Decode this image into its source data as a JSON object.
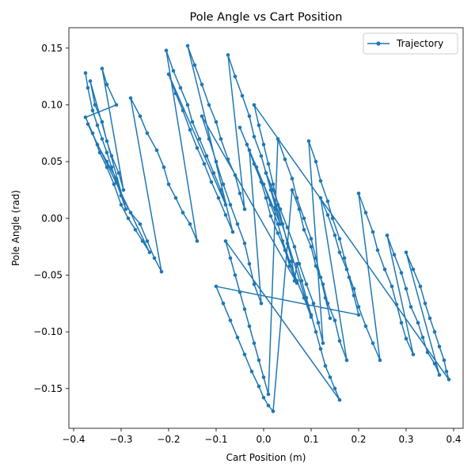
{
  "chart_data": {
    "type": "line",
    "title": "Pole Angle vs Cart Position",
    "xlabel": "Cart Position (m)",
    "ylabel": "Pole Angle (rad)",
    "xlim": [
      -0.41,
      0.42
    ],
    "ylim": [
      -0.185,
      0.168
    ],
    "xticks": [
      -0.4,
      -0.3,
      -0.2,
      -0.1,
      0.0,
      0.1,
      0.2,
      0.3,
      0.4
    ],
    "xtick_labels": [
      "−0.4",
      "−0.3",
      "−0.2",
      "−0.1",
      "0.0",
      "0.1",
      "0.2",
      "0.3",
      "0.4"
    ],
    "yticks": [
      -0.15,
      -0.1,
      -0.05,
      0.0,
      0.05,
      0.1,
      0.15
    ],
    "ytick_labels": [
      "−0.15",
      "−0.10",
      "−0.05",
      "0.00",
      "0.05",
      "0.10",
      "0.15"
    ],
    "grid": false,
    "legend_position": "top-right",
    "series": [
      {
        "name": "Trajectory",
        "color": "#1f77b4",
        "marker": "circle",
        "x": [
          -0.375,
          -0.37,
          -0.36,
          -0.35,
          -0.34,
          -0.33,
          -0.32,
          -0.31,
          -0.3,
          -0.29,
          -0.365,
          -0.355,
          -0.34,
          -0.33,
          -0.32,
          -0.305,
          -0.295,
          -0.34,
          -0.33,
          -0.31,
          -0.375,
          -0.36,
          -0.345,
          -0.33,
          -0.315,
          -0.3,
          -0.285,
          -0.27,
          -0.255,
          -0.24,
          -0.37,
          -0.35,
          -0.33,
          -0.31,
          -0.3,
          -0.28,
          -0.26,
          -0.245,
          -0.23,
          -0.215,
          -0.28,
          -0.26,
          -0.245,
          -0.225,
          -0.21,
          -0.2,
          -0.185,
          -0.17,
          -0.155,
          -0.14,
          -0.205,
          -0.19,
          -0.175,
          -0.16,
          -0.15,
          -0.135,
          -0.12,
          -0.105,
          -0.09,
          -0.08,
          -0.2,
          -0.185,
          -0.17,
          -0.155,
          -0.14,
          -0.125,
          -0.11,
          -0.095,
          -0.08,
          -0.065,
          -0.16,
          -0.145,
          -0.13,
          -0.115,
          -0.1,
          -0.09,
          -0.075,
          -0.06,
          -0.05,
          -0.04,
          -0.075,
          -0.06,
          -0.045,
          -0.03,
          -0.02,
          -0.005,
          0.005,
          0.015,
          0.025,
          0.035,
          -0.05,
          -0.035,
          -0.02,
          -0.005,
          0.005,
          0.015,
          0.03,
          0.045,
          0.055,
          0.07,
          -0.13,
          -0.115,
          -0.1,
          -0.085,
          -0.07,
          -0.055,
          -0.04,
          -0.03,
          -0.02,
          -0.005,
          -0.03,
          -0.015,
          0.0,
          0.015,
          0.03,
          0.04,
          0.055,
          0.07,
          0.085,
          0.1,
          0.005,
          0.02,
          0.035,
          0.05,
          0.065,
          0.075,
          0.09,
          0.105,
          0.115,
          0.125,
          0.095,
          0.11,
          0.12,
          0.135,
          0.145,
          0.16,
          0.17,
          0.18,
          0.19,
          0.2,
          -0.1,
          -0.085,
          -0.07,
          -0.055,
          -0.04,
          -0.025,
          -0.01,
          0.0,
          0.01,
          0.02,
          0.06,
          0.075,
          0.085,
          0.1,
          0.11,
          0.125,
          0.135,
          0.15,
          0.16,
          0.175,
          0.12,
          0.135,
          0.15,
          0.16,
          0.175,
          0.19,
          0.2,
          0.215,
          0.23,
          0.245,
          0.2,
          0.215,
          0.23,
          0.24,
          0.255,
          0.27,
          0.28,
          0.29,
          0.3,
          0.315,
          0.26,
          0.275,
          0.29,
          0.3,
          0.31,
          0.325,
          0.335,
          0.345,
          0.36,
          0.37,
          0.3,
          0.315,
          0.33,
          0.34,
          0.35,
          0.36,
          0.37,
          0.38,
          0.385,
          0.39,
          -0.02,
          -0.01,
          0.0,
          0.01,
          0.02,
          0.03,
          0.04,
          0.05,
          0.06,
          0.065,
          0.07,
          0.08,
          0.09,
          0.1,
          0.11,
          0.12,
          0.13,
          0.14,
          0.15,
          0.16,
          -0.08,
          -0.07,
          -0.06,
          -0.05,
          -0.04,
          -0.03,
          -0.02,
          -0.01,
          0.0,
          0.01,
          0.03,
          0.045,
          0.06,
          0.07,
          0.085,
          0.1,
          0.11,
          0.12,
          0.13,
          0.14
        ],
        "y": [
          0.128,
          0.115,
          0.095,
          0.082,
          0.07,
          0.058,
          0.045,
          0.032,
          0.02,
          0.008,
          0.121,
          0.1,
          0.085,
          0.068,
          0.055,
          0.04,
          0.025,
          0.132,
          0.118,
          0.1,
          0.089,
          0.075,
          0.058,
          0.045,
          0.03,
          0.012,
          0.0,
          -0.01,
          -0.02,
          -0.03,
          0.083,
          0.065,
          0.05,
          0.035,
          0.02,
          0.005,
          -0.005,
          -0.02,
          -0.035,
          -0.047,
          0.106,
          0.09,
          0.075,
          0.06,
          0.045,
          0.03,
          0.018,
          0.005,
          -0.005,
          -0.02,
          0.148,
          0.13,
          0.115,
          0.1,
          0.085,
          0.07,
          0.055,
          0.04,
          0.025,
          0.012,
          0.127,
          0.11,
          0.095,
          0.078,
          0.062,
          0.048,
          0.032,
          0.018,
          0.003,
          -0.012,
          0.152,
          0.135,
          0.118,
          0.1,
          0.085,
          0.07,
          0.052,
          0.038,
          0.022,
          0.008,
          0.144,
          0.125,
          0.108,
          0.09,
          0.072,
          0.055,
          0.04,
          0.025,
          0.01,
          -0.005,
          0.08,
          0.065,
          0.048,
          0.032,
          0.018,
          0.002,
          -0.013,
          -0.028,
          -0.042,
          -0.057,
          0.09,
          0.07,
          0.05,
          0.03,
          0.012,
          -0.005,
          -0.022,
          -0.04,
          -0.058,
          -0.075,
          0.06,
          0.045,
          0.03,
          0.012,
          -0.005,
          -0.02,
          -0.038,
          -0.055,
          -0.07,
          -0.087,
          0.04,
          0.025,
          0.008,
          -0.008,
          -0.025,
          -0.04,
          -0.058,
          -0.075,
          -0.092,
          -0.11,
          0.068,
          0.05,
          0.033,
          0.015,
          0.0,
          -0.018,
          -0.035,
          -0.052,
          -0.068,
          -0.085,
          -0.06,
          -0.075,
          -0.09,
          -0.105,
          -0.12,
          -0.135,
          -0.148,
          -0.158,
          -0.165,
          -0.17,
          0.025,
          0.008,
          -0.01,
          -0.025,
          -0.042,
          -0.058,
          -0.075,
          -0.09,
          -0.108,
          -0.125,
          0.018,
          0.003,
          -0.015,
          -0.03,
          -0.045,
          -0.062,
          -0.078,
          -0.095,
          -0.11,
          -0.125,
          0.022,
          0.005,
          -0.012,
          -0.028,
          -0.045,
          -0.06,
          -0.076,
          -0.092,
          -0.106,
          -0.12,
          -0.015,
          -0.032,
          -0.048,
          -0.062,
          -0.078,
          -0.092,
          -0.105,
          -0.118,
          -0.128,
          -0.138,
          -0.03,
          -0.045,
          -0.06,
          -0.075,
          -0.088,
          -0.1,
          -0.113,
          -0.125,
          -0.135,
          -0.142,
          0.1,
          0.082,
          0.065,
          0.048,
          0.03,
          0.012,
          -0.005,
          -0.022,
          -0.038,
          -0.055,
          -0.04,
          -0.055,
          -0.07,
          -0.085,
          -0.1,
          -0.115,
          -0.13,
          -0.14,
          -0.15,
          -0.16,
          -0.02,
          -0.035,
          -0.05,
          -0.065,
          -0.08,
          -0.095,
          -0.11,
          -0.125,
          -0.14,
          -0.155,
          0.07,
          0.052,
          0.035,
          0.018,
          0.0,
          -0.018,
          -0.035,
          -0.052,
          -0.07,
          -0.088
        ]
      }
    ]
  }
}
